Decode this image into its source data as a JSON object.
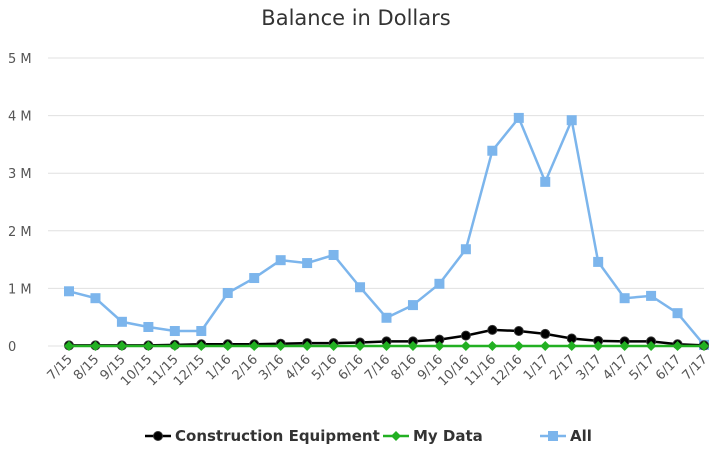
{
  "chart_data": {
    "type": "line",
    "title": "Balance in Dollars",
    "categories": [
      "7/15",
      "8/15",
      "9/15",
      "10/15",
      "11/15",
      "12/15",
      "1/16",
      "2/16",
      "3/16",
      "4/16",
      "5/16",
      "6/16",
      "7/16",
      "8/16",
      "9/16",
      "10/16",
      "11/16",
      "12/16",
      "1/17",
      "2/17",
      "3/17",
      "4/17",
      "5/17",
      "6/17",
      "7/17"
    ],
    "series": [
      {
        "name": "Construction Equipment",
        "color": "#000000",
        "marker": "circle",
        "values": [
          10000,
          10000,
          10000,
          10000,
          20000,
          30000,
          30000,
          30000,
          40000,
          50000,
          50000,
          60000,
          80000,
          80000,
          110000,
          180000,
          280000,
          260000,
          210000,
          130000,
          90000,
          80000,
          80000,
          30000,
          10000
        ]
      },
      {
        "name": "My Data",
        "color": "#22b022",
        "marker": "diamond",
        "values": [
          0,
          0,
          0,
          0,
          0,
          0,
          0,
          0,
          0,
          0,
          0,
          0,
          0,
          0,
          0,
          0,
          0,
          0,
          0,
          0,
          0,
          0,
          0,
          0,
          0
        ]
      },
      {
        "name": "All",
        "color": "#7cb5ec",
        "marker": "square",
        "values": [
          950000,
          830000,
          420000,
          330000,
          260000,
          260000,
          920000,
          1180000,
          1490000,
          1440000,
          1580000,
          1020000,
          490000,
          710000,
          1080000,
          1680000,
          3390000,
          3960000,
          2850000,
          3920000,
          1460000,
          830000,
          870000,
          570000,
          20000
        ]
      }
    ],
    "ylim": [
      0,
      5000000
    ],
    "yticks": [
      0,
      {
        "value": 1000000,
        "label": "1 M"
      },
      {
        "value": 2000000,
        "label": "2 M"
      },
      {
        "value": 3000000,
        "label": "3 M"
      },
      {
        "value": 4000000,
        "label": "4 M"
      },
      {
        "value": 5000000,
        "label": "5 M"
      }
    ],
    "grid": true,
    "legend": "bottom"
  }
}
